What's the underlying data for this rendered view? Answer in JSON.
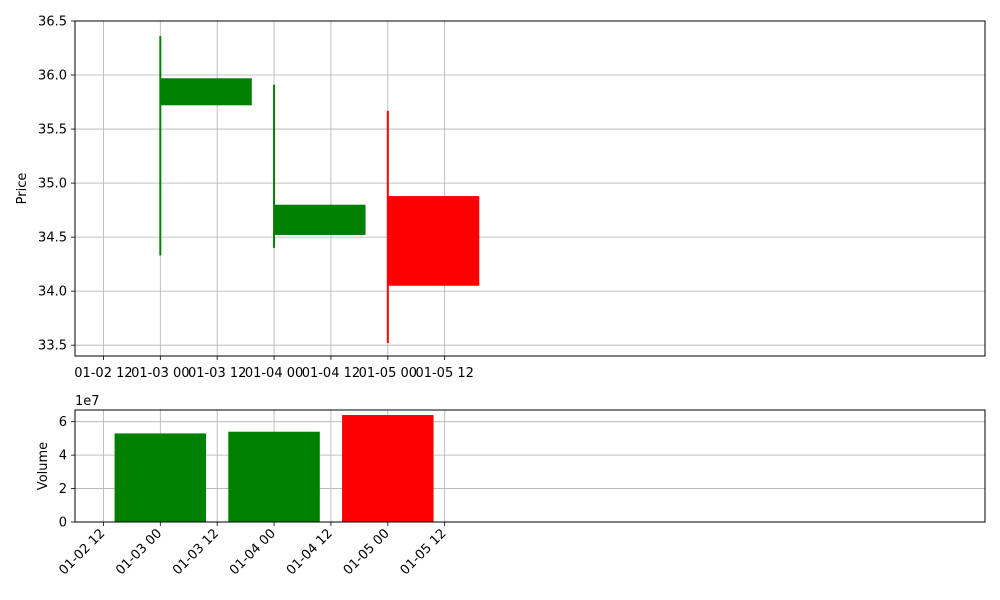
{
  "chart_data": [
    {
      "type": "candlestick",
      "ylabel": "Price",
      "ylim": [
        33.4,
        36.5
      ],
      "yticks": [
        "33.5",
        "34.0",
        "34.5",
        "35.0",
        "35.5",
        "36.0",
        "36.5"
      ],
      "ytick_values": [
        33.5,
        34.0,
        34.5,
        35.0,
        35.5,
        36.0,
        36.5
      ],
      "xlim_hours": [
        -18,
        174
      ],
      "xticks": [
        "01-02 12",
        "01-03 00",
        "01-03 12",
        "01-04 00",
        "01-04 12",
        "01-05 00",
        "01-05 12"
      ],
      "xtick_hours": [
        -12,
        0,
        12,
        24,
        36,
        48,
        60
      ],
      "grid": true,
      "candles": [
        {
          "date": "01-03",
          "t_hours": 0,
          "open": 35.72,
          "high": 36.36,
          "low": 34.33,
          "close": 35.97,
          "color": "#008000"
        },
        {
          "date": "01-04",
          "t_hours": 24,
          "open": 34.52,
          "high": 35.91,
          "low": 34.4,
          "close": 34.8,
          "color": "#008000"
        },
        {
          "date": "01-05",
          "t_hours": 48,
          "open": 34.88,
          "high": 35.67,
          "low": 33.52,
          "close": 34.05,
          "color": "#ff0000"
        }
      ],
      "body_width_hours": 19.3
    },
    {
      "type": "bar",
      "ylabel": "Volume",
      "scale_label": "1e7",
      "ylim": [
        0,
        6.7
      ],
      "yticks": [
        "0",
        "2",
        "4",
        "6"
      ],
      "ytick_values": [
        0,
        2,
        4,
        6
      ],
      "xlim_hours": [
        -18,
        174
      ],
      "xticks": [
        "01-02 12",
        "01-03 00",
        "01-03 12",
        "01-04 00",
        "01-04 12",
        "01-05 00",
        "01-05 12"
      ],
      "xtick_hours": [
        -12,
        0,
        12,
        24,
        36,
        48,
        60
      ],
      "grid": true,
      "bar_width_hours": 19.3,
      "bars": [
        {
          "date": "01-03",
          "t_hours": 0,
          "value": 5.3,
          "color": "#008000"
        },
        {
          "date": "01-04",
          "t_hours": 24,
          "value": 5.4,
          "color": "#008000"
        },
        {
          "date": "01-05",
          "t_hours": 48,
          "value": 6.4,
          "color": "#ff0000"
        }
      ]
    }
  ]
}
